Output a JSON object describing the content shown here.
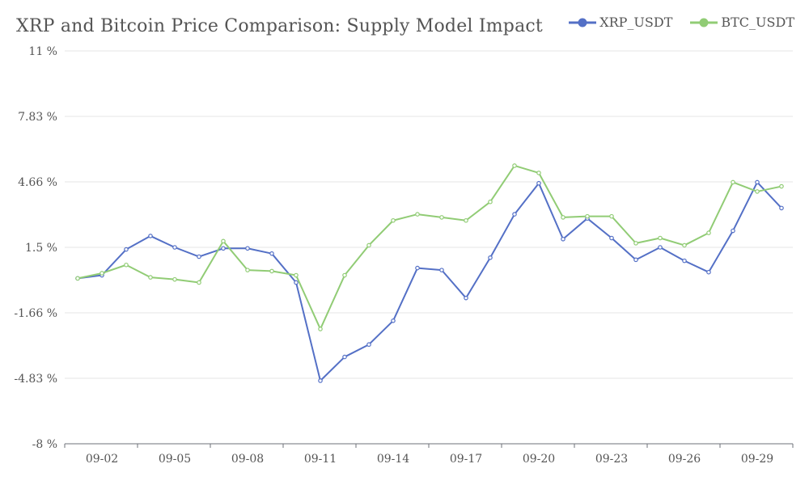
{
  "chart_data": {
    "type": "line",
    "title": "XRP and Bitcoin Price Comparison: Supply Model Impact",
    "xlabel": "",
    "ylabel": "",
    "y_ticks": [
      "11 %",
      "7.83 %",
      "4.66 %",
      "1.5 %",
      "-1.66 %",
      "-4.83 %",
      "-8 %"
    ],
    "ylim": [
      -8,
      11
    ],
    "grid": true,
    "legend_position": "top-right",
    "x": [
      "09-01",
      "09-02",
      "09-03",
      "09-04",
      "09-05",
      "09-06",
      "09-07",
      "09-08",
      "09-09",
      "09-10",
      "09-11",
      "09-12",
      "09-13",
      "09-14",
      "09-15",
      "09-16",
      "09-17",
      "09-18",
      "09-19",
      "09-20",
      "09-21",
      "09-22",
      "09-23",
      "09-24",
      "09-25",
      "09-26",
      "09-27",
      "09-28",
      "09-29",
      "09-30"
    ],
    "x_tick_labels": [
      "09-02",
      "09-05",
      "09-08",
      "09-11",
      "09-14",
      "09-17",
      "09-20",
      "09-23",
      "09-26",
      "09-29"
    ],
    "series": [
      {
        "name": "XRP_USDT",
        "color": "#5470c6",
        "values": [
          0.0,
          0.15,
          1.4,
          2.05,
          1.5,
          1.05,
          1.45,
          1.45,
          1.2,
          -0.2,
          -4.95,
          -3.8,
          -3.2,
          -2.05,
          0.5,
          0.4,
          -0.95,
          1.0,
          3.1,
          4.6,
          1.9,
          2.9,
          1.95,
          0.9,
          1.5,
          0.85,
          0.3,
          2.3,
          4.65,
          3.4
        ]
      },
      {
        "name": "BTC_USDT",
        "color": "#91cc75",
        "values": [
          0.0,
          0.25,
          0.65,
          0.05,
          -0.05,
          -0.2,
          1.8,
          0.4,
          0.35,
          0.15,
          -2.45,
          0.15,
          1.6,
          2.8,
          3.1,
          2.95,
          2.8,
          3.7,
          5.45,
          5.1,
          2.95,
          3.0,
          3.0,
          1.7,
          1.95,
          1.6,
          2.2,
          4.65,
          4.2,
          4.45
        ]
      }
    ]
  }
}
